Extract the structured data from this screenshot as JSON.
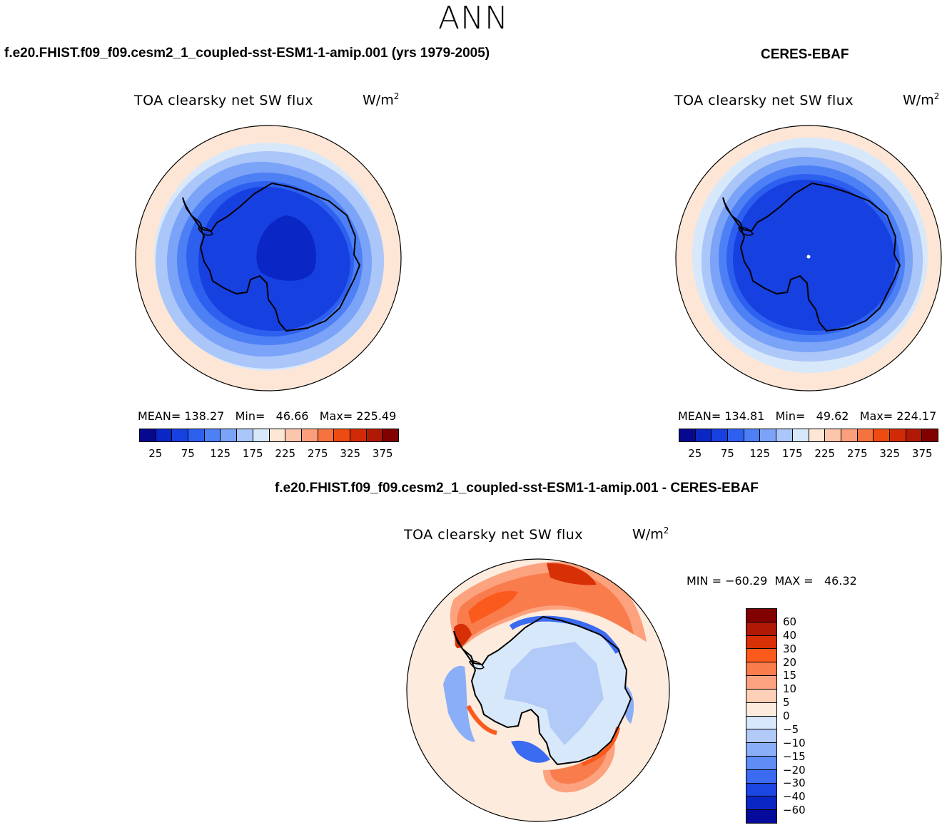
{
  "season": "ANN",
  "test_case": "f.e20.FHIST.f09_f09.cesm2_1_coupled-sst-ESM1-1-amip.001 (yrs 1979-2005)",
  "ref_case": "CERES-EBAF",
  "diff_case": "f.e20.FHIST.f09_f09.cesm2_1_coupled-sst-ESM1-1-amip.001 - CERES-EBAF",
  "variable_title": "TOA clearsky net SW flux",
  "units": "W/m",
  "units_power": "2",
  "panels": [
    {
      "id": "test",
      "mean_label": "MEAN=",
      "mean": "138.27",
      "min_label": "Min=",
      "min": "46.66",
      "max_label": "Max=",
      "max": "225.49"
    },
    {
      "id": "ref",
      "mean_label": "MEAN=",
      "mean": "134.81",
      "min_label": "Min=",
      "min": "49.62",
      "max_label": "Max=",
      "max": "224.17"
    }
  ],
  "diff_stats": {
    "min_label": "MIN =",
    "min": "−60.29",
    "max_label": "MAX =",
    "max": "46.32"
  },
  "abs_colorbar": {
    "colors": [
      "#08088f",
      "#0a26c4",
      "#1740e0",
      "#2e60f0",
      "#4d80f5",
      "#7ba3f7",
      "#abc6f8",
      "#d8e8fb",
      "#fde6d6",
      "#fcc6ad",
      "#fb9e7c",
      "#f6733f",
      "#ee4b12",
      "#d02b06",
      "#b01906",
      "#810000"
    ],
    "labels": [
      "25",
      "75",
      "125",
      "175",
      "225",
      "275",
      "325",
      "375"
    ]
  },
  "diff_colorbar": {
    "colors": [
      "#810000",
      "#b01906",
      "#d83006",
      "#fa5a1b",
      "#f97c4d",
      "#fca27e",
      "#fdd0b7",
      "#fdebde",
      "#d8e8fb",
      "#b2caf8",
      "#8aaef7",
      "#5f8df5",
      "#3a6bf0",
      "#1c46e2",
      "#0a26c4",
      "#060a9a"
    ],
    "labels": [
      "60",
      "40",
      "30",
      "20",
      "15",
      "10",
      "5",
      "0",
      "−5",
      "−10",
      "−15",
      "−20",
      "−30",
      "−40",
      "−60"
    ]
  }
}
